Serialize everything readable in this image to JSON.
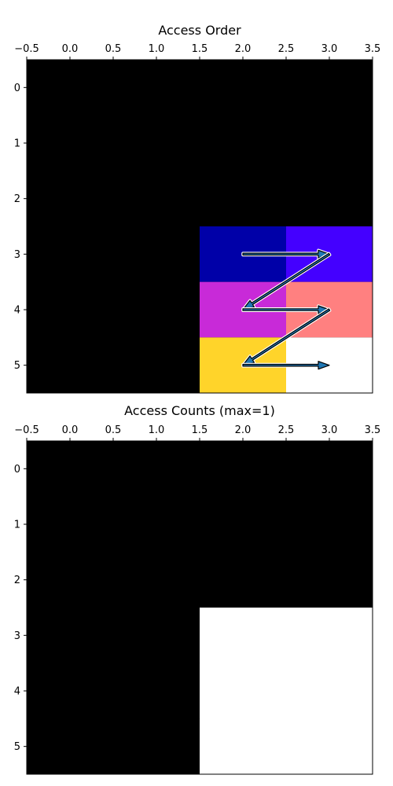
{
  "chart_data": [
    {
      "type": "heatmap",
      "title": "Access Order",
      "x_ticks": [
        "−0.5",
        "0.0",
        "0.5",
        "1.0",
        "1.5",
        "2.0",
        "2.5",
        "3.0",
        "3.5"
      ],
      "y_ticks": [
        "0",
        "1",
        "2",
        "3",
        "4",
        "5"
      ],
      "xlim": [
        -0.5,
        3.5
      ],
      "ylim": [
        5.5,
        -0.5
      ],
      "x_axis_position": "top",
      "grid": false,
      "cells": [
        {
          "row": 3,
          "col": 2,
          "order": 1,
          "color": "#0000a8"
        },
        {
          "row": 3,
          "col": 3,
          "order": 2,
          "color": "#4400ff"
        },
        {
          "row": 4,
          "col": 2,
          "order": 3,
          "color": "#c82ad8"
        },
        {
          "row": 4,
          "col": 3,
          "order": 4,
          "color": "#ff8080"
        },
        {
          "row": 5,
          "col": 2,
          "order": 5,
          "color": "#ffd42a"
        },
        {
          "row": 5,
          "col": 3,
          "order": 6,
          "color": "#ffffff"
        }
      ],
      "background_color": "#000000",
      "arrows": [
        {
          "from": [
            2,
            3
          ],
          "to": [
            3,
            3
          ]
        },
        {
          "from": [
            3,
            3
          ],
          "to": [
            2,
            4
          ]
        },
        {
          "from": [
            2,
            4
          ],
          "to": [
            3,
            4
          ]
        },
        {
          "from": [
            3,
            4
          ],
          "to": [
            2,
            5
          ]
        },
        {
          "from": [
            2,
            5
          ],
          "to": [
            3,
            5
          ]
        }
      ]
    },
    {
      "type": "heatmap",
      "title": "Access Counts (max=1)",
      "x_ticks": [
        "−0.5",
        "0.0",
        "0.5",
        "1.0",
        "1.5",
        "2.0",
        "2.5",
        "3.0",
        "3.5"
      ],
      "y_ticks": [
        "0",
        "1",
        "2",
        "3",
        "4",
        "5"
      ],
      "xlim": [
        -0.5,
        3.5
      ],
      "ylim": [
        5.5,
        -0.5
      ],
      "x_axis_position": "top",
      "grid": false,
      "max": 1,
      "counts": [
        [
          0,
          0,
          0,
          0
        ],
        [
          0,
          0,
          0,
          0
        ],
        [
          0,
          0,
          0,
          0
        ],
        [
          0,
          0,
          1,
          1
        ],
        [
          0,
          0,
          1,
          1
        ],
        [
          0,
          0,
          1,
          1
        ]
      ],
      "low_color": "#000000",
      "high_color": "#ffffff"
    }
  ]
}
